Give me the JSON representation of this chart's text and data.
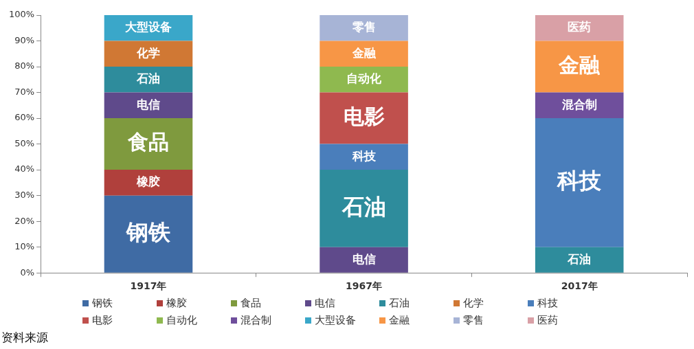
{
  "chart_data": {
    "type": "bar",
    "stacked": true,
    "categories": [
      "1917年",
      "1967年",
      "2017年"
    ],
    "ylim": [
      0,
      100
    ],
    "yticks": [
      {
        "value": 0,
        "label": "0%"
      },
      {
        "value": 10,
        "label": "10%"
      },
      {
        "value": 20,
        "label": "20%"
      },
      {
        "value": 30,
        "label": "30%"
      },
      {
        "value": 40,
        "label": "40%"
      },
      {
        "value": 50,
        "label": "50%"
      },
      {
        "value": 60,
        "label": "60%"
      },
      {
        "value": 70,
        "label": "70%"
      },
      {
        "value": 80,
        "label": "80%"
      },
      {
        "value": 90,
        "label": "90%"
      },
      {
        "value": 100,
        "label": "100%"
      }
    ],
    "grid": false,
    "legend": "bottom",
    "series": [
      {
        "name": "钢铁",
        "color": "#3f6ba4",
        "values": [
          30,
          null,
          null
        ]
      },
      {
        "name": "橡胶",
        "color": "#b0403c",
        "values": [
          10,
          null,
          null
        ]
      },
      {
        "name": "食品",
        "color": "#7f9a3e",
        "values": [
          20,
          null,
          null
        ]
      },
      {
        "name": "电信",
        "color": "#5f4a8b",
        "values": [
          10,
          10,
          null
        ]
      },
      {
        "name": "石油",
        "color": "#2e8c9c",
        "values": [
          10,
          30,
          10
        ]
      },
      {
        "name": "化学",
        "color": "#d07834",
        "values": [
          10,
          null,
          null
        ]
      },
      {
        "name": "科技",
        "color": "#4a7ebb",
        "values": [
          null,
          10,
          50
        ]
      },
      {
        "name": "电影",
        "color": "#c0504d",
        "values": [
          null,
          20,
          null
        ]
      },
      {
        "name": "自动化",
        "color": "#8fb94f",
        "values": [
          null,
          10,
          null
        ]
      },
      {
        "name": "混合制",
        "color": "#6f4f9c",
        "values": [
          null,
          null,
          10
        ]
      },
      {
        "name": "大型设备",
        "color": "#3aa7c9",
        "values": [
          10,
          null,
          null
        ]
      },
      {
        "name": "金融",
        "color": "#f79646",
        "values": [
          null,
          10,
          20
        ]
      },
      {
        "name": "零售",
        "color": "#a7b4d6",
        "values": [
          null,
          10,
          null
        ]
      },
      {
        "name": "医药",
        "color": "#d9a0a6",
        "values": [
          null,
          null,
          10
        ]
      }
    ],
    "annotations": [
      "资料来源"
    ]
  }
}
